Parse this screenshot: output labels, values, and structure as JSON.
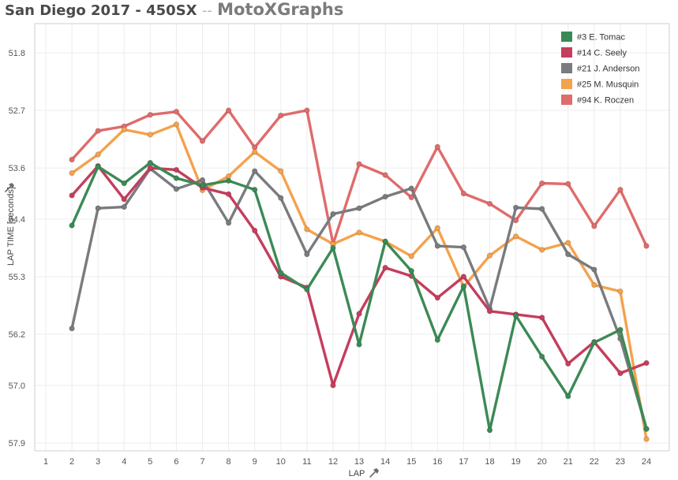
{
  "header": {
    "title": "San Diego 2017 - 450SX",
    "separator": "--",
    "brand": "MotoXGraphs"
  },
  "chart_data": {
    "type": "line",
    "title": "San Diego 2017 - 450SX -- MotoXGraphs",
    "xlabel": "LAP",
    "ylabel": "LAP TIME [seconds]",
    "y_axis_inverted": true,
    "xlim": [
      1,
      24
    ],
    "ylim": [
      51.4,
      57.95
    ],
    "x_ticks": [
      1,
      2,
      3,
      4,
      5,
      6,
      7,
      8,
      9,
      10,
      11,
      12,
      13,
      14,
      15,
      16,
      17,
      18,
      19,
      20,
      21,
      22,
      23,
      24
    ],
    "y_ticks": [
      51.8,
      52.7,
      53.6,
      54.4,
      55.3,
      56.2,
      57.0,
      57.9
    ],
    "y_tick_labels": [
      "51.8",
      "52.7",
      "53.6",
      "54.4",
      "55.3",
      "56.2",
      "57.0",
      "57.9"
    ],
    "grid": true,
    "legend_position": "top-right",
    "x": [
      2,
      3,
      4,
      5,
      6,
      7,
      8,
      9,
      10,
      11,
      12,
      13,
      14,
      15,
      16,
      17,
      18,
      19,
      20,
      21,
      22,
      23,
      24
    ],
    "series": [
      {
        "name": "#94 K. Roczen",
        "color": "#e06b6b",
        "values": [
          53.47,
          53.02,
          52.95,
          52.77,
          52.72,
          53.18,
          52.7,
          53.28,
          52.78,
          52.7,
          54.79,
          53.54,
          53.71,
          54.06,
          53.27,
          54.0,
          54.16,
          54.42,
          53.84,
          53.85,
          54.51,
          53.94,
          54.82
        ]
      },
      {
        "name": "#25 M. Musquin",
        "color": "#f4a24d",
        "values": [
          53.68,
          53.39,
          53.0,
          53.08,
          52.92,
          53.95,
          53.73,
          53.35,
          53.65,
          54.56,
          54.79,
          54.61,
          54.75,
          54.98,
          54.54,
          55.46,
          54.97,
          54.67,
          54.88,
          54.77,
          55.43,
          55.53,
          57.84
        ]
      },
      {
        "name": "#21 J. Anderson",
        "color": "#7a7b7f",
        "values": [
          56.11,
          54.23,
          54.21,
          53.61,
          53.93,
          53.79,
          54.46,
          53.65,
          54.07,
          54.95,
          54.32,
          54.23,
          54.05,
          53.92,
          54.82,
          54.84,
          55.8,
          54.22,
          54.24,
          54.95,
          55.19,
          56.27,
          57.68
        ]
      },
      {
        "name": "#14 C. Seely",
        "color": "#c43e5d",
        "values": [
          54.03,
          53.57,
          54.09,
          53.6,
          53.63,
          53.91,
          54.01,
          54.58,
          55.3,
          55.47,
          57.0,
          55.88,
          55.16,
          55.29,
          55.63,
          55.3,
          55.84,
          55.89,
          55.94,
          56.66,
          56.32,
          56.81,
          56.65
        ]
      },
      {
        "name": "#3 E. Tomac",
        "color": "#3b8a55",
        "values": [
          54.5,
          53.58,
          53.84,
          53.52,
          53.76,
          53.87,
          53.8,
          53.94,
          55.24,
          55.5,
          54.85,
          56.36,
          54.75,
          55.21,
          56.29,
          55.45,
          57.7,
          55.91,
          56.55,
          57.17,
          56.33,
          56.13,
          57.68
        ]
      }
    ],
    "legend_order": [
      "#3 E. Tomac",
      "#14 C. Seely",
      "#21 J. Anderson",
      "#25 M. Musquin",
      "#94 K. Roczen"
    ]
  }
}
